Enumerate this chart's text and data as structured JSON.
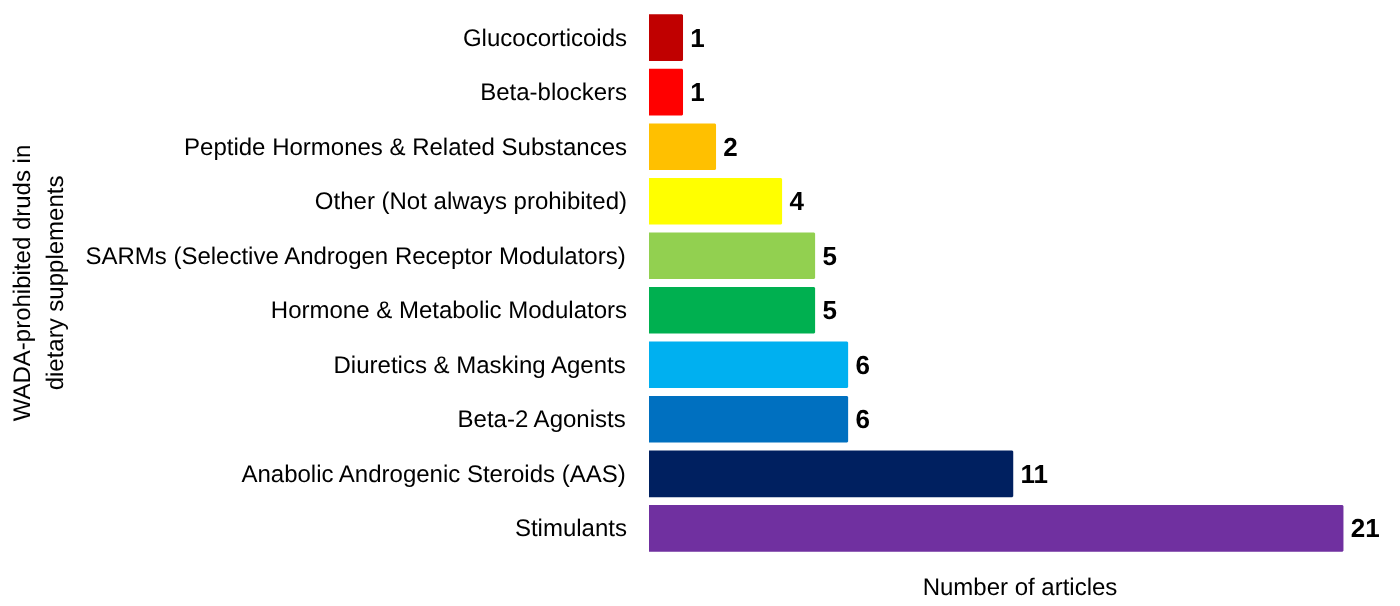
{
  "chart_data": {
    "type": "bar",
    "orientation": "horizontal",
    "data_labels": true,
    "grid": false,
    "tick_labels": "y",
    "xlabel": "Number of articles",
    "ylabel": "WADA-prohibited druds in dietary supplements",
    "categories": [
      "Glucocorticoids",
      "Beta-blockers",
      "Peptide Hormones & Related Substances",
      "Other (Not always prohibited)",
      "SARMs (Selective Androgen Receptor Modulators)",
      "Hormone & Metabolic Modulators",
      "Diuretics & Masking Agents",
      "Beta-2 Agonists",
      "Anabolic Androgenic Steroids (AAS)",
      "Stimulants"
    ],
    "values": [
      1,
      1,
      2,
      4,
      5,
      5,
      6,
      6,
      11,
      21
    ],
    "colors": [
      "#c00000",
      "#ff0000",
      "#ffc000",
      "#ffff00",
      "#92d050",
      "#00b050",
      "#00b0f0",
      "#0070c0",
      "#002060",
      "#7030a0"
    ]
  }
}
